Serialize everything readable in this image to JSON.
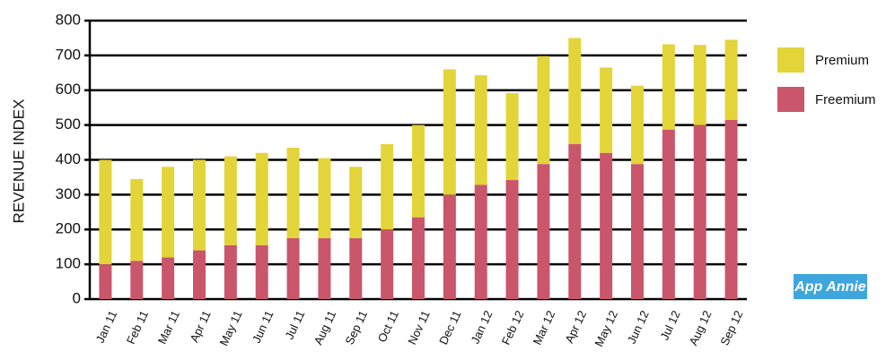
{
  "chart_data": {
    "type": "stacked-bar",
    "y_label": "REVENUE INDEX",
    "categories": [
      "Jan 11",
      "Feb 11",
      "Mar 11",
      "Apr 11",
      "May 11",
      "Jun 11",
      "Jul 11",
      "Aug 11",
      "Sep 11",
      "Oct 11",
      "Nov 11",
      "Dec 11",
      "Jan 12",
      "Feb 12",
      "Mar 12",
      "Apr 12",
      "May 12",
      "Jun 12",
      "Jul 12",
      "Aug 12",
      "Sep 12"
    ],
    "series": [
      {
        "name": "Freemium",
        "color": "#c9566a",
        "values": [
          100,
          110,
          120,
          140,
          155,
          155,
          175,
          175,
          175,
          200,
          235,
          300,
          328,
          342,
          388,
          445,
          420,
          388,
          487,
          500,
          515
        ]
      },
      {
        "name": "Premium",
        "color": "#e3d43a",
        "values": [
          300,
          235,
          260,
          260,
          255,
          265,
          260,
          230,
          205,
          245,
          265,
          360,
          315,
          250,
          310,
          305,
          245,
          225,
          245,
          230,
          230
        ]
      }
    ],
    "ylim": [
      0,
      800
    ],
    "yticks": [
      0,
      100,
      200,
      300,
      400,
      500,
      600,
      700,
      800
    ],
    "grid": true,
    "legend": "right",
    "watermark": "App Annie"
  }
}
